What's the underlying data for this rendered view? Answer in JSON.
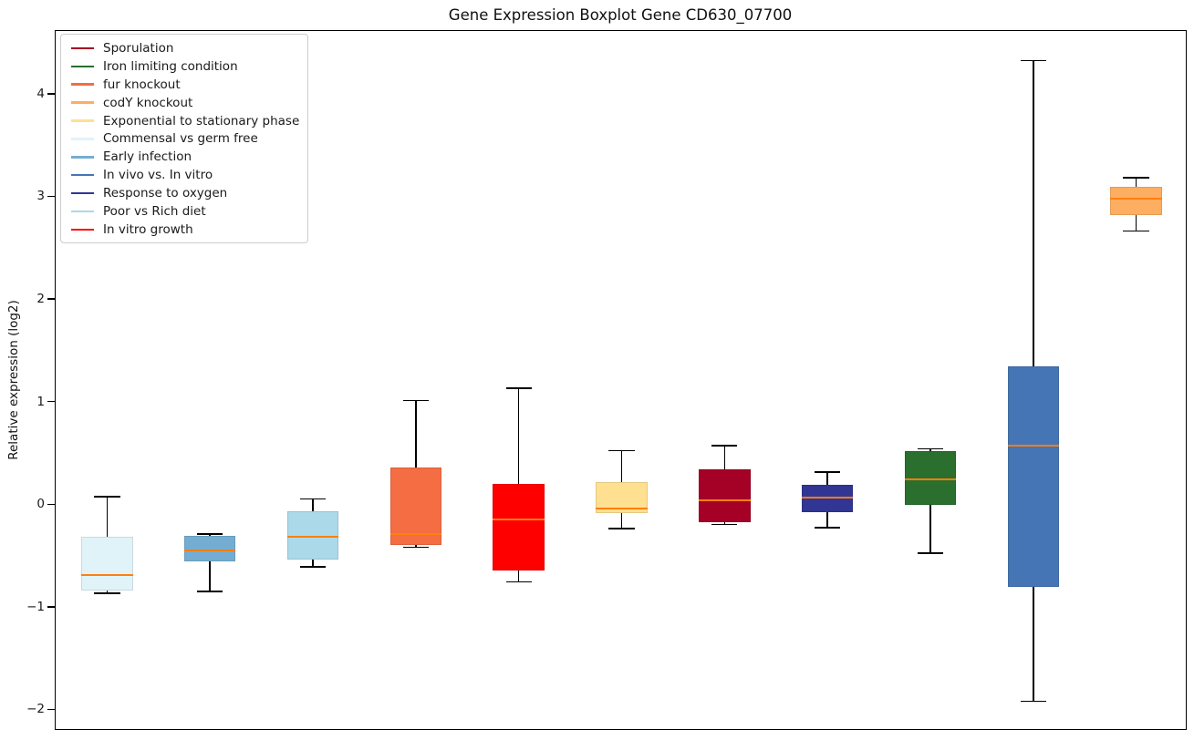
{
  "title": "Gene Expression Boxplot Gene CD630_07700",
  "y_axis": {
    "label": "Relative expression (log2)",
    "ticks": [
      {
        "label": "4",
        "value": 4
      },
      {
        "label": "3",
        "value": 3
      },
      {
        "label": "2",
        "value": 2
      },
      {
        "label": "1",
        "value": 1
      },
      {
        "label": "0",
        "value": 0
      },
      {
        "label": "−1",
        "value": -1
      },
      {
        "label": "−2",
        "value": -2
      }
    ]
  },
  "legend": {
    "position": "upper left",
    "items": [
      {
        "label": "Sporulation",
        "color": "#a50026"
      },
      {
        "label": "Iron limiting condition",
        "color": "#2a6f2e"
      },
      {
        "label": "fur knockout",
        "color": "#f46d43"
      },
      {
        "label": "codY knockout",
        "color": "#fdae61"
      },
      {
        "label": "Exponential to stationary phase",
        "color": "#fee090"
      },
      {
        "label": "Commensal vs germ free",
        "color": "#e0f3f8"
      },
      {
        "label": "Early infection",
        "color": "#74add1"
      },
      {
        "label": "In vivo vs. In vitro",
        "color": "#4575b4"
      },
      {
        "label": "Response to oxygen",
        "color": "#313695"
      },
      {
        "label": "Poor vs Rich diet",
        "color": "#abd9e9"
      },
      {
        "label": "In vitro growth",
        "color": "#ff0000"
      }
    ]
  },
  "chart_data": {
    "type": "boxplot",
    "title": "Gene Expression Boxplot Gene CD630_07700",
    "xlabel": "",
    "ylabel": "Relative expression (log2)",
    "ylim": [
      -2.2,
      4.62
    ],
    "xlim": [
      0.5,
      11.5
    ],
    "grid": false,
    "legend_position": "upper left",
    "box_width": 0.5,
    "cap_width": 0.25,
    "median_color": "#ff7f0e",
    "whisker_color": "#000000",
    "series": [
      {
        "position": 1,
        "name": "Commensal vs germ free",
        "color": "#e0f3f8",
        "whisker_low": -0.86,
        "q1": -0.83,
        "median": -0.68,
        "q3": -0.31,
        "whisker_high": 0.08
      },
      {
        "position": 2,
        "name": "Early infection",
        "color": "#74add1",
        "whisker_low": -0.84,
        "q1": -0.55,
        "median": -0.44,
        "q3": -0.3,
        "whisker_high": -0.28
      },
      {
        "position": 3,
        "name": "Poor vs Rich diet",
        "color": "#abd9e9",
        "whisker_low": -0.6,
        "q1": -0.53,
        "median": -0.31,
        "q3": -0.06,
        "whisker_high": 0.06
      },
      {
        "position": 4,
        "name": "fur knockout",
        "color": "#f46d43",
        "whisker_low": -0.41,
        "q1": -0.39,
        "median": -0.28,
        "q3": 0.37,
        "whisker_high": 1.02
      },
      {
        "position": 5,
        "name": "In vitro growth",
        "color": "#ff0000",
        "whisker_low": -0.75,
        "q1": -0.64,
        "median": -0.14,
        "q3": 0.21,
        "whisker_high": 1.14
      },
      {
        "position": 6,
        "name": "Exponential to stationary phase",
        "color": "#fee090",
        "whisker_low": -0.23,
        "q1": -0.08,
        "median": -0.03,
        "q3": 0.22,
        "whisker_high": 0.53
      },
      {
        "position": 7,
        "name": "Sporulation",
        "color": "#a50026",
        "whisker_low": -0.19,
        "q1": -0.17,
        "median": 0.05,
        "q3": 0.35,
        "whisker_high": 0.58
      },
      {
        "position": 8,
        "name": "Response to oxygen",
        "color": "#313695",
        "whisker_low": -0.22,
        "q1": -0.07,
        "median": 0.07,
        "q3": 0.2,
        "whisker_high": 0.32
      },
      {
        "position": 9,
        "name": "Iron limiting condition",
        "color": "#2a6f2e",
        "whisker_low": -0.47,
        "q1": 0.0,
        "median": 0.25,
        "q3": 0.53,
        "whisker_high": 0.55
      },
      {
        "position": 10,
        "name": "In vivo vs. In vitro",
        "color": "#4575b4",
        "whisker_low": -1.91,
        "q1": -0.8,
        "median": 0.58,
        "q3": 1.35,
        "whisker_high": 4.33
      },
      {
        "position": 11,
        "name": "codY knockout",
        "color": "#fdae61",
        "whisker_low": 2.67,
        "q1": 2.83,
        "median": 2.99,
        "q3": 3.1,
        "whisker_high": 3.19
      }
    ]
  }
}
